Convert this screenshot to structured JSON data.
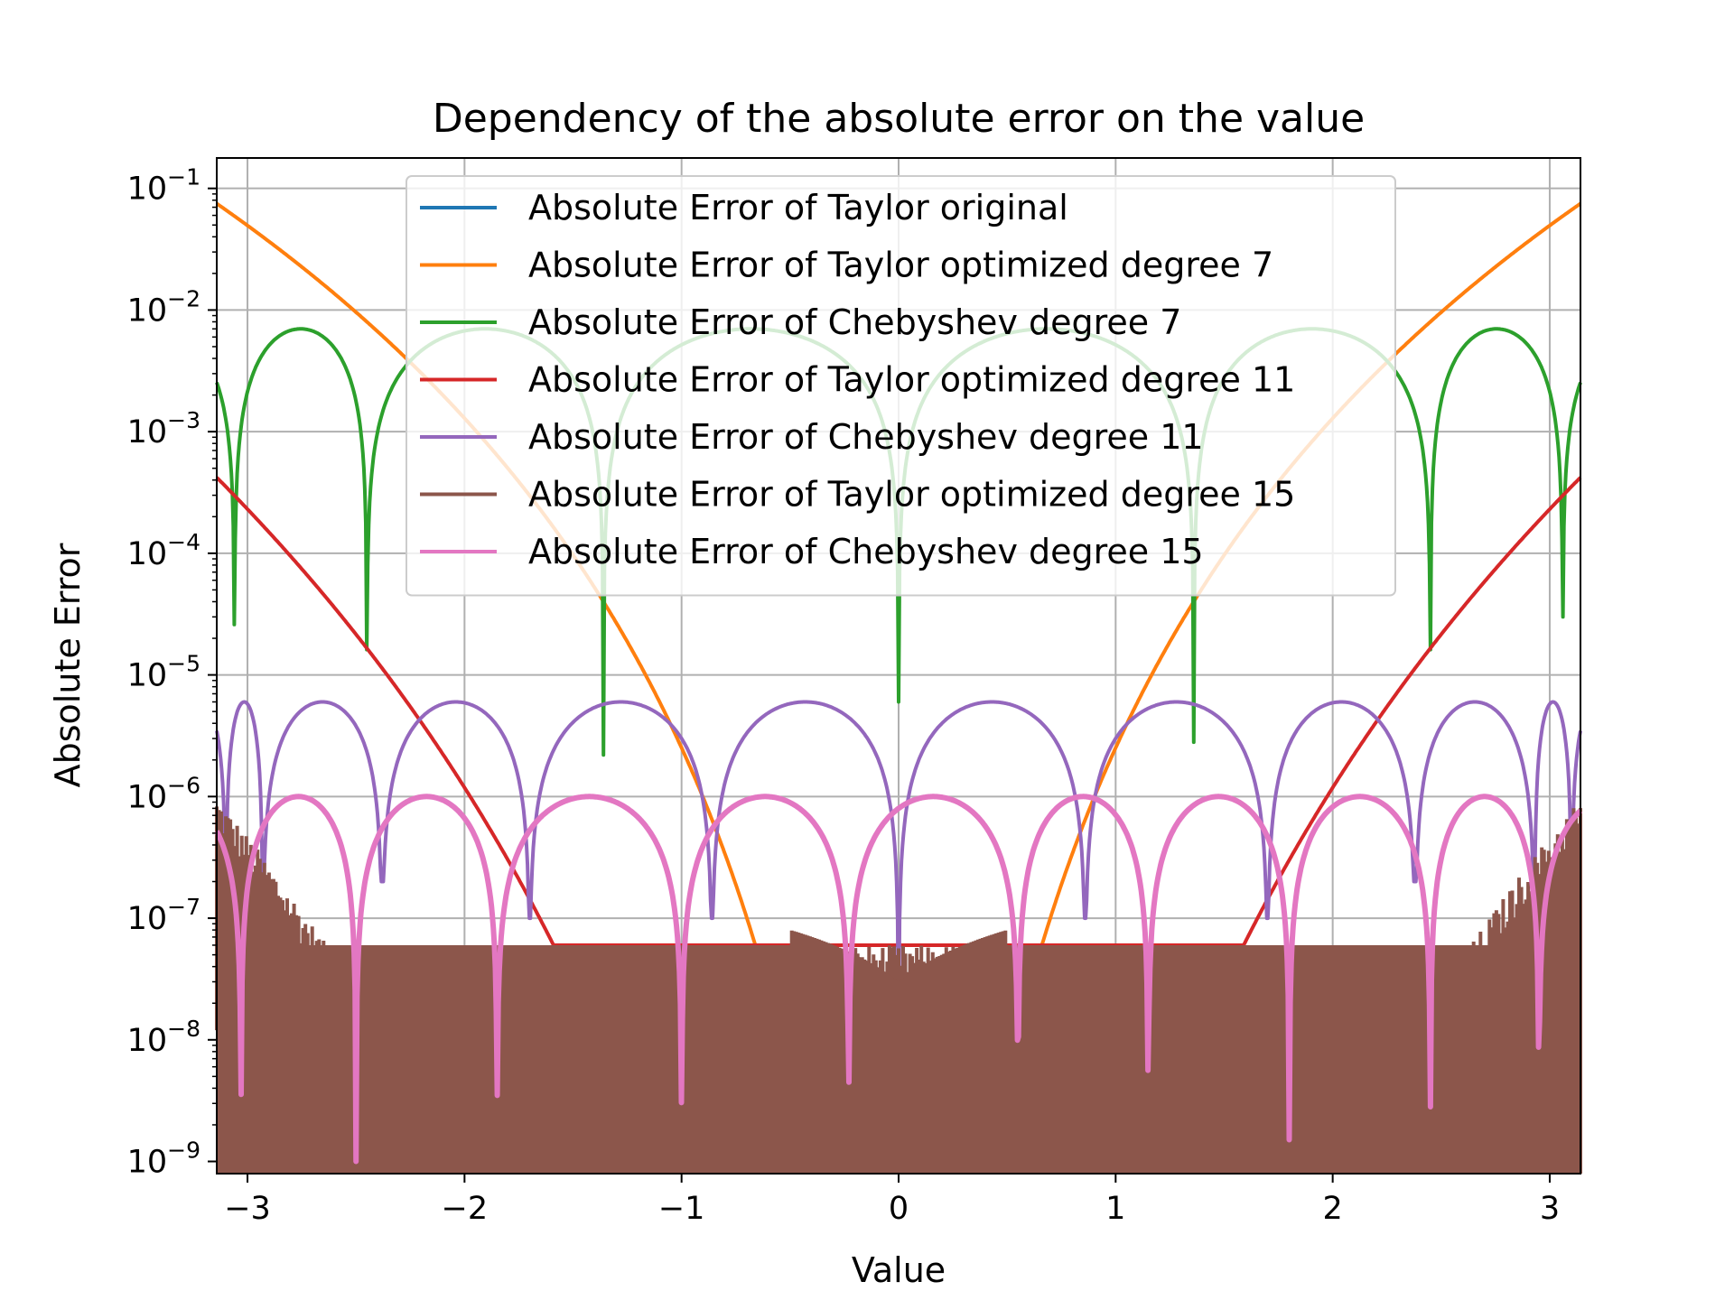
{
  "chart_data": {
    "type": "line",
    "title": "Dependency of the absolute error on the value",
    "xlabel": "Value",
    "ylabel": "Absolute Error",
    "xscale": "linear",
    "yscale": "log",
    "xlim": [
      -3.1416,
      3.1416
    ],
    "ylim_exponent": [
      -9.1,
      -0.75
    ],
    "xticks": [
      -3,
      -2,
      -1,
      0,
      1,
      2,
      3
    ],
    "xtick_labels": [
      "−3",
      "−2",
      "−1",
      "0",
      "1",
      "2",
      "3"
    ],
    "yticks": [
      -9,
      -8,
      -7,
      -6,
      -5,
      -4,
      -3,
      -2,
      -1
    ],
    "ytick_labels": [
      {
        "base": "10",
        "exp": "−9"
      },
      {
        "base": "10",
        "exp": "−8"
      },
      {
        "base": "10",
        "exp": "−7"
      },
      {
        "base": "10",
        "exp": "−6"
      },
      {
        "base": "10",
        "exp": "−5"
      },
      {
        "base": "10",
        "exp": "−4"
      },
      {
        "base": "10",
        "exp": "−3"
      },
      {
        "base": "10",
        "exp": "−2"
      },
      {
        "base": "10",
        "exp": "−1"
      }
    ],
    "grid": true,
    "legend_position": "upper-center",
    "series": [
      {
        "name": "Absolute Error of Taylor original",
        "color": "#1f77b4",
        "kind": "hidden"
      },
      {
        "name": "Absolute Error of Taylor optimized degree 7",
        "color": "#ff7f0e",
        "kind": "taylor",
        "degree": 7,
        "y_at_edge": 0.075,
        "floor": 6e-08
      },
      {
        "name": "Absolute Error of Chebyshev degree 7",
        "color": "#2ca02c",
        "kind": "chebyshev",
        "peak": 0.007,
        "zeros": [
          -3.06,
          -2.45,
          -1.36,
          0.0,
          1.36,
          2.45,
          3.06
        ],
        "dip_min": [
          1.3e-05,
          8e-06,
          2e-06,
          6e-06,
          2.8e-06,
          1e-05,
          3e-05
        ]
      },
      {
        "name": "Absolute Error of Taylor optimized degree 11",
        "color": "#d62728",
        "kind": "taylor",
        "degree": 11,
        "y_at_edge": 0.00042,
        "floor": 6e-08
      },
      {
        "name": "Absolute Error of Chebyshev degree 11",
        "color": "#9467bd",
        "kind": "chebyshev",
        "peak": 6e-06,
        "zeros": [
          -3.1,
          -2.93,
          -2.38,
          -1.7,
          -0.86,
          0.0,
          0.86,
          1.7,
          2.38,
          2.93,
          3.1
        ],
        "dip_min": [
          1.5e-08,
          2e-07,
          2e-07,
          1e-07,
          1e-07,
          8e-09,
          1e-07,
          1e-07,
          2e-07,
          2e-07,
          1e-08
        ]
      },
      {
        "name": "Absolute Error of Taylor optimized degree 15",
        "color": "#8c564b",
        "kind": "noise",
        "floor": 6e-08
      },
      {
        "name": "Absolute Error of Chebyshev degree 15",
        "color": "#e377c2",
        "kind": "chebyshev_step",
        "peak": 1e-06,
        "zeros": [
          -3.03,
          -2.5,
          -1.85,
          -1.0,
          -0.23,
          0.55,
          1.15,
          1.8,
          2.45,
          2.95
        ]
      }
    ]
  }
}
